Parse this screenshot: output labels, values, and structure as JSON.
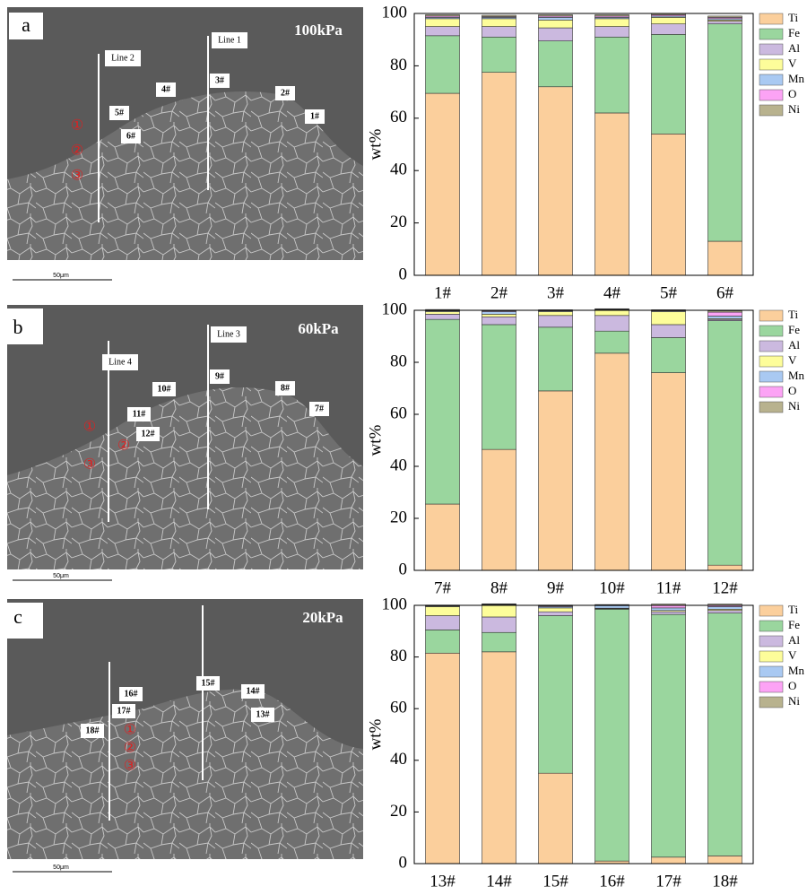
{
  "images": [
    {
      "panel": "a",
      "pressure": "100kPa",
      "lines": [
        "Line 1",
        "Line 2"
      ],
      "points": [
        "1#",
        "2#",
        "3#",
        "4#",
        "5#",
        "6#"
      ],
      "markers": [
        "①",
        "②",
        "③"
      ],
      "scale": "50μm"
    },
    {
      "panel": "b",
      "pressure": "60kPa",
      "lines": [
        "Line 3",
        "Line 4"
      ],
      "points": [
        "7#",
        "8#",
        "9#",
        "10#",
        "11#",
        "12#"
      ],
      "markers": [
        "①",
        "②",
        "③"
      ],
      "scale": "50μm"
    },
    {
      "panel": "c",
      "pressure": "20kPa",
      "lines": [],
      "points": [
        "13#",
        "14#",
        "15#",
        "16#",
        "17#",
        "18#"
      ],
      "markers": [
        "①",
        "②",
        "③"
      ],
      "scale": "50μm"
    }
  ],
  "chart_data": [
    {
      "type": "bar",
      "stacked": true,
      "ylabel": "wt%",
      "categories": [
        "1#",
        "2#",
        "3#",
        "4#",
        "5#",
        "6#"
      ],
      "series": [
        {
          "name": "Ti",
          "color": "#fbcf9c",
          "values": [
            69.5,
            77.5,
            72,
            62,
            54,
            13
          ]
        },
        {
          "name": "Fe",
          "color": "#9ad69e",
          "values": [
            22,
            13.5,
            17.5,
            29,
            38,
            83
          ]
        },
        {
          "name": "Al",
          "color": "#cbb9df",
          "values": [
            3.5,
            4,
            5,
            4,
            4,
            1
          ]
        },
        {
          "name": "V",
          "color": "#fdfd9a",
          "values": [
            3,
            3,
            3,
            3,
            2.5,
            0.5
          ]
        },
        {
          "name": "Mn",
          "color": "#a9c9f2",
          "values": [
            0.5,
            0.5,
            1,
            0.5,
            0.5,
            0.5
          ]
        },
        {
          "name": "O",
          "color": "#fca3f5",
          "values": [
            0.5,
            0.3,
            0.5,
            0.5,
            0.5,
            0.5
          ]
        },
        {
          "name": "Ni",
          "color": "#b8b28e",
          "values": [
            0.5,
            0.5,
            0.5,
            0.5,
            0.5,
            0.5
          ]
        }
      ],
      "ylim": [
        0,
        100
      ],
      "yticks": [
        0,
        20,
        40,
        60,
        80,
        100
      ],
      "legend": "right"
    },
    {
      "type": "bar",
      "stacked": true,
      "ylabel": "wt%",
      "categories": [
        "7#",
        "8#",
        "9#",
        "10#",
        "11#",
        "12#"
      ],
      "series": [
        {
          "name": "Ti",
          "color": "#fbcf9c",
          "values": [
            25.5,
            46.5,
            69,
            83.5,
            76,
            2
          ]
        },
        {
          "name": "Fe",
          "color": "#9ad69e",
          "values": [
            71,
            48,
            24.5,
            8.5,
            13.5,
            94
          ]
        },
        {
          "name": "Al",
          "color": "#cbb9df",
          "values": [
            2,
            3,
            4.5,
            6,
            5,
            0.5
          ]
        },
        {
          "name": "V",
          "color": "#fdfd9a",
          "values": [
            1,
            1,
            1.5,
            2,
            5,
            0.3
          ]
        },
        {
          "name": "Mn",
          "color": "#a9c9f2",
          "values": [
            0.3,
            1,
            0.3,
            0.2,
            0.3,
            1
          ]
        },
        {
          "name": "O",
          "color": "#fca3f5",
          "values": [
            0.2,
            0.3,
            0.2,
            0.2,
            0.2,
            1.5
          ]
        },
        {
          "name": "Ni",
          "color": "#b8b28e",
          "values": [
            0.3,
            0.2,
            0.2,
            0.2,
            0.2,
            0.5
          ]
        }
      ],
      "ylim": [
        0,
        100
      ],
      "yticks": [
        0,
        20,
        40,
        60,
        80,
        100
      ],
      "legend": "right"
    },
    {
      "type": "bar",
      "stacked": true,
      "ylabel": "wt%",
      "categories": [
        "13#",
        "14#",
        "15#",
        "16#",
        "17#",
        "18#"
      ],
      "series": [
        {
          "name": "Ti",
          "color": "#fbcf9c",
          "values": [
            81.5,
            82,
            35,
            1,
            2.5,
            3
          ]
        },
        {
          "name": "Fe",
          "color": "#9ad69e",
          "values": [
            9,
            7.5,
            61,
            97.5,
            94,
            94
          ]
        },
        {
          "name": "Al",
          "color": "#cbb9df",
          "values": [
            5.5,
            6,
            1.5,
            0.2,
            1,
            1
          ]
        },
        {
          "name": "V",
          "color": "#fdfd9a",
          "values": [
            3.5,
            4.5,
            1.5,
            0.2,
            0.5,
            0.5
          ]
        },
        {
          "name": "Mn",
          "color": "#a9c9f2",
          "values": [
            0.2,
            0.2,
            0.5,
            1,
            1,
            1
          ]
        },
        {
          "name": "O",
          "color": "#fca3f5",
          "values": [
            0.2,
            0.2,
            0.3,
            0.2,
            1,
            0.5
          ]
        },
        {
          "name": "Ni",
          "color": "#b8b28e",
          "values": [
            0.2,
            0.2,
            0.3,
            0.2,
            0.5,
            0.5
          ]
        }
      ],
      "ylim": [
        0,
        100
      ],
      "yticks": [
        0,
        20,
        40,
        60,
        80,
        100
      ],
      "legend": "right"
    }
  ]
}
